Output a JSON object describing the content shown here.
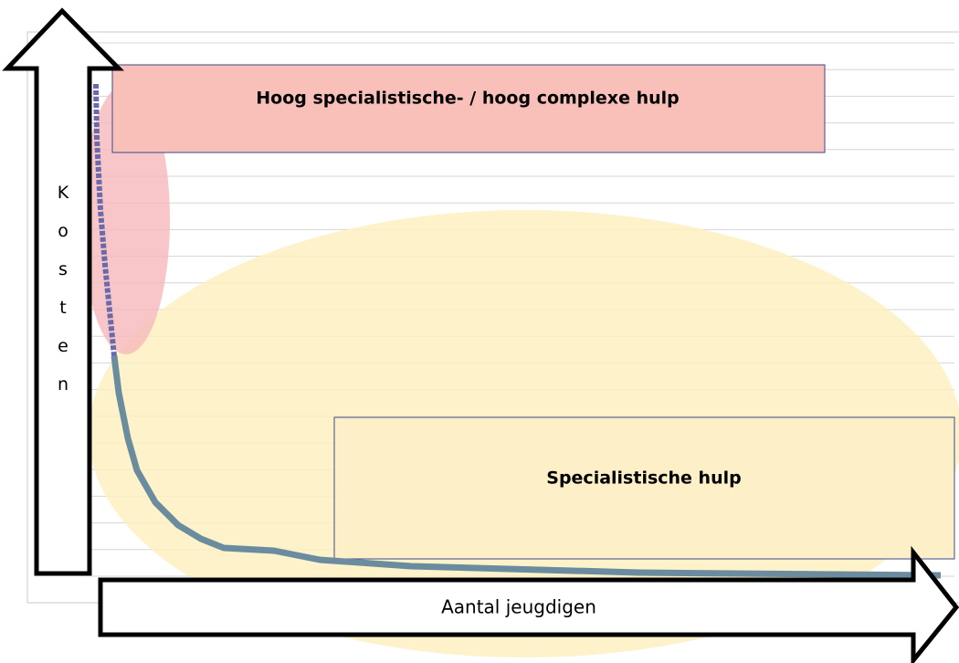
{
  "boxes": {
    "high": {
      "label": "Hoog specialistische- / hoog complexe hulp"
    },
    "special": {
      "label": "Specialistische hulp"
    }
  },
  "axes": {
    "y_label": "Kosten",
    "x_label": "Aantal jeugdigen"
  }
}
